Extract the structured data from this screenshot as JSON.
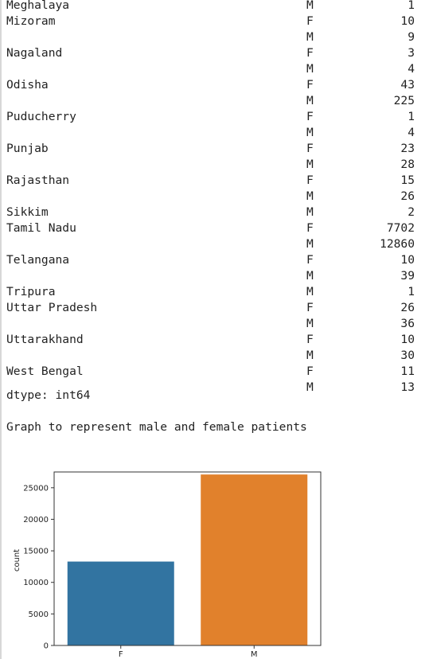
{
  "output": {
    "series_rows": [
      {
        "state": "Meghalaya",
        "gender": "M",
        "count": "1"
      },
      {
        "state": "Mizoram",
        "gender": "F",
        "count": "10"
      },
      {
        "state": "",
        "gender": "M",
        "count": "9"
      },
      {
        "state": "Nagaland",
        "gender": "F",
        "count": "3"
      },
      {
        "state": "",
        "gender": "M",
        "count": "4"
      },
      {
        "state": "Odisha",
        "gender": "F",
        "count": "43"
      },
      {
        "state": "",
        "gender": "M",
        "count": "225"
      },
      {
        "state": "Puducherry",
        "gender": "F",
        "count": "1"
      },
      {
        "state": "",
        "gender": "M",
        "count": "4"
      },
      {
        "state": "Punjab",
        "gender": "F",
        "count": "23"
      },
      {
        "state": "",
        "gender": "M",
        "count": "28"
      },
      {
        "state": "Rajasthan",
        "gender": "F",
        "count": "15"
      },
      {
        "state": "",
        "gender": "M",
        "count": "26"
      },
      {
        "state": "Sikkim",
        "gender": "M",
        "count": "2"
      },
      {
        "state": "Tamil Nadu",
        "gender": "F",
        "count": "7702"
      },
      {
        "state": "",
        "gender": "M",
        "count": "12860"
      },
      {
        "state": "Telangana",
        "gender": "F",
        "count": "10"
      },
      {
        "state": "",
        "gender": "M",
        "count": "39"
      },
      {
        "state": "Tripura",
        "gender": "M",
        "count": "1"
      },
      {
        "state": "Uttar Pradesh",
        "gender": "F",
        "count": "26"
      },
      {
        "state": "",
        "gender": "M",
        "count": "36"
      },
      {
        "state": "Uttarakhand",
        "gender": "F",
        "count": "10"
      },
      {
        "state": "",
        "gender": "M",
        "count": "30"
      },
      {
        "state": "West Bengal",
        "gender": "F",
        "count": "11"
      },
      {
        "state": "",
        "gender": "M",
        "count": "13"
      }
    ],
    "dtype_line": "dtype: int64",
    "caption": "Graph to represent male and female patients"
  },
  "chart_data": {
    "type": "bar",
    "categories": [
      "F",
      "M"
    ],
    "values": [
      13300,
      27100
    ],
    "colors": [
      "#3274a1",
      "#e1812c"
    ],
    "title": "",
    "xlabel": "",
    "ylabel": "count",
    "ylim": [
      0,
      27500
    ],
    "yticks": [
      0,
      5000,
      10000,
      15000,
      20000,
      25000
    ],
    "grid": false
  }
}
